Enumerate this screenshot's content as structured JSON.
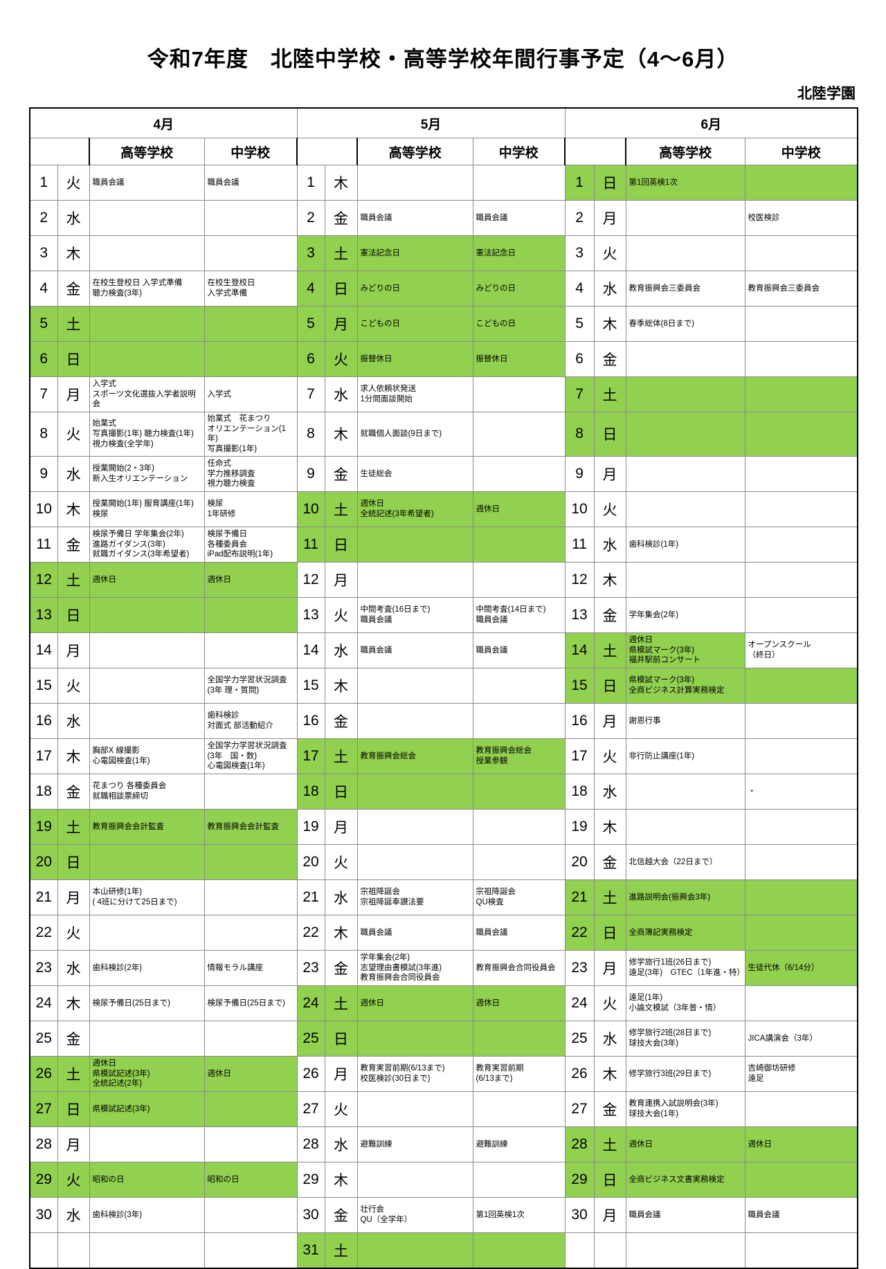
{
  "page": {
    "title": "令和7年度　北陸中学校・高等学校年間行事予定（4～6月）",
    "org": "北陸学園",
    "highlight_color": "#92d050"
  },
  "months": [
    {
      "name": "4月",
      "hs_header": "高等学校",
      "jhs_header": "中学校",
      "days": [
        {
          "d": "1",
          "w": "火",
          "hs": "職員会議",
          "jhs": "職員会議",
          "hl": "none"
        },
        {
          "d": "2",
          "w": "水",
          "hs": "",
          "jhs": "",
          "hl": "none"
        },
        {
          "d": "3",
          "w": "木",
          "hs": "",
          "jhs": "",
          "hl": "none"
        },
        {
          "d": "4",
          "w": "金",
          "hs": "在校生登校日 入学式準備\n聴力検査(3年)",
          "jhs": "在校生登校日\n入学式準備",
          "hl": "none"
        },
        {
          "d": "5",
          "w": "土",
          "hs": "",
          "jhs": "",
          "hl": "full"
        },
        {
          "d": "6",
          "w": "日",
          "hs": "",
          "jhs": "",
          "hl": "full"
        },
        {
          "d": "7",
          "w": "月",
          "hs": "入学式\nスポーツ文化選抜入学者説明会",
          "jhs": "入学式",
          "hl": "none"
        },
        {
          "d": "8",
          "w": "火",
          "hs": "始業式\n写真撮影(1年) 聴力検査(1年)\n視力検査(全学年)",
          "jhs": "始業式　花まつり\nオリエンテーション(1年)\n写真撮影(1年)",
          "hl": "none"
        },
        {
          "d": "9",
          "w": "水",
          "hs": "授業開始(2・3年)\n新入生オリエンテーション",
          "jhs": "任命式\n学力推移調査\n視力聴力検査",
          "hl": "none"
        },
        {
          "d": "10",
          "w": "木",
          "hs": "授業開始(1年) 服育講座(1年)\n検尿",
          "jhs": "検尿\n1年研修",
          "hl": "none"
        },
        {
          "d": "11",
          "w": "金",
          "hs": "検尿予備日 学年集会(2年)\n進路ガイダンス(3年)\n就職ガイダンス(3年希望者)",
          "jhs": "検尿予備日\n各種委員会\niPad配布説明(1年)",
          "hl": "none"
        },
        {
          "d": "12",
          "w": "土",
          "hs": "週休日",
          "jhs": "週休日",
          "hl": "full"
        },
        {
          "d": "13",
          "w": "日",
          "hs": "",
          "jhs": "",
          "hl": "full"
        },
        {
          "d": "14",
          "w": "月",
          "hs": "",
          "jhs": "",
          "hl": "none"
        },
        {
          "d": "15",
          "w": "火",
          "hs": "",
          "jhs": "全国学力学習状況調査(3年 理・質問)",
          "hl": "none"
        },
        {
          "d": "16",
          "w": "水",
          "hs": "",
          "jhs": "歯科検診\n対面式 部活動紹介",
          "hl": "none"
        },
        {
          "d": "17",
          "w": "木",
          "hs": "胸部X 線撮影\n心電図検査(1年)",
          "jhs": "全国学力学習状況調査\n(3年　国・数)\n心電図検査(1年)",
          "hl": "none"
        },
        {
          "d": "18",
          "w": "金",
          "hs": "花まつり 各種委員会\n就職相談票締切",
          "jhs": "",
          "hl": "none"
        },
        {
          "d": "19",
          "w": "土",
          "hs": "教育振興会会計監査",
          "jhs": "教育振興会会計監査",
          "hl": "full"
        },
        {
          "d": "20",
          "w": "日",
          "hs": "",
          "jhs": "",
          "hl": "full"
        },
        {
          "d": "21",
          "w": "月",
          "hs": "本山研修(1年)\n( 4班に分けて25日まで)",
          "jhs": "",
          "hl": "none"
        },
        {
          "d": "22",
          "w": "火",
          "hs": "",
          "jhs": "",
          "hl": "none"
        },
        {
          "d": "23",
          "w": "水",
          "hs": "歯科検診(2年)",
          "jhs": "情報モラル講座",
          "hl": "none"
        },
        {
          "d": "24",
          "w": "木",
          "hs": "検尿予備日(25日まで)",
          "jhs": "検尿予備日(25日まで)",
          "hl": "none"
        },
        {
          "d": "25",
          "w": "金",
          "hs": "",
          "jhs": "",
          "hl": "none"
        },
        {
          "d": "26",
          "w": "土",
          "hs": "週休日\n県模試記述(3年)\n全統記述(2年)",
          "jhs": "週休日",
          "hl": "full"
        },
        {
          "d": "27",
          "w": "日",
          "hs": "県模試記述(3年)",
          "jhs": "",
          "hl": "full"
        },
        {
          "d": "28",
          "w": "月",
          "hs": "",
          "jhs": "",
          "hl": "none"
        },
        {
          "d": "29",
          "w": "火",
          "hs": "昭和の日",
          "jhs": "昭和の日",
          "hl": "full"
        },
        {
          "d": "30",
          "w": "水",
          "hs": "歯科検診(3年)",
          "jhs": "",
          "hl": "none"
        },
        {
          "d": "",
          "w": "",
          "hs": "",
          "jhs": "",
          "hl": "none"
        }
      ]
    },
    {
      "name": "5月",
      "hs_header": "高等学校",
      "jhs_header": "中学校",
      "days": [
        {
          "d": "1",
          "w": "木",
          "hs": "",
          "jhs": "",
          "hl": "none"
        },
        {
          "d": "2",
          "w": "金",
          "hs": "職員会議",
          "jhs": "職員会議",
          "hl": "none"
        },
        {
          "d": "3",
          "w": "土",
          "hs": "憲法記念日",
          "jhs": "憲法記念日",
          "hl": "full"
        },
        {
          "d": "4",
          "w": "日",
          "hs": "みどりの日",
          "jhs": "みどりの日",
          "hl": "full"
        },
        {
          "d": "5",
          "w": "月",
          "hs": "こどもの日",
          "jhs": "こどもの日",
          "hl": "full"
        },
        {
          "d": "6",
          "w": "火",
          "hs": "振替休日",
          "jhs": "振替休日",
          "hl": "full"
        },
        {
          "d": "7",
          "w": "水",
          "hs": "求人依頼状発送\n1分間面談開始",
          "jhs": "",
          "hl": "none"
        },
        {
          "d": "8",
          "w": "木",
          "hs": "就職個人面談(9日まで)",
          "jhs": "",
          "hl": "none"
        },
        {
          "d": "9",
          "w": "金",
          "hs": "生徒総会",
          "jhs": "",
          "hl": "none"
        },
        {
          "d": "10",
          "w": "土",
          "hs": "週休日\n全統記述(3年希望者)",
          "jhs": "週休日",
          "hl": "full"
        },
        {
          "d": "11",
          "w": "日",
          "hs": "",
          "jhs": "",
          "hl": "full"
        },
        {
          "d": "12",
          "w": "月",
          "hs": "",
          "jhs": "",
          "hl": "none"
        },
        {
          "d": "13",
          "w": "火",
          "hs": "中間考査(16日まで)\n職員会議",
          "jhs": "中間考査(14日まで)\n職員会議",
          "hl": "none"
        },
        {
          "d": "14",
          "w": "水",
          "hs": "職員会議",
          "jhs": "職員会議",
          "hl": "none"
        },
        {
          "d": "15",
          "w": "木",
          "hs": "",
          "jhs": "",
          "hl": "none"
        },
        {
          "d": "16",
          "w": "金",
          "hs": "",
          "jhs": "",
          "hl": "none"
        },
        {
          "d": "17",
          "w": "土",
          "hs": "教育振興会総会",
          "jhs": "教育振興会総会\n授業参観",
          "hl": "full"
        },
        {
          "d": "18",
          "w": "日",
          "hs": "",
          "jhs": "",
          "hl": "full"
        },
        {
          "d": "19",
          "w": "月",
          "hs": "",
          "jhs": "",
          "hl": "none"
        },
        {
          "d": "20",
          "w": "火",
          "hs": "",
          "jhs": "",
          "hl": "none"
        },
        {
          "d": "21",
          "w": "水",
          "hs": "宗祖降誕会\n宗祖降誕奉讃法要",
          "jhs": "宗祖降誕会\nQU検査",
          "hl": "none"
        },
        {
          "d": "22",
          "w": "木",
          "hs": "職員会議",
          "jhs": "職員会議",
          "hl": "none"
        },
        {
          "d": "23",
          "w": "金",
          "hs": "学年集会(2年)\n志望理由書模試(3年進)\n教育振興会合同役員会",
          "jhs": "教育振興会合同役員会",
          "hl": "none"
        },
        {
          "d": "24",
          "w": "土",
          "hs": "週休日",
          "jhs": "週休日",
          "hl": "full"
        },
        {
          "d": "25",
          "w": "日",
          "hs": "",
          "jhs": "",
          "hl": "full"
        },
        {
          "d": "26",
          "w": "月",
          "hs": "教育実習前期(6/13まで)\n校医検診(30日まで)",
          "jhs": "教育実習前期\n(6/13まで)",
          "hl": "none"
        },
        {
          "d": "27",
          "w": "火",
          "hs": "",
          "jhs": "",
          "hl": "none"
        },
        {
          "d": "28",
          "w": "水",
          "hs": "避難訓練",
          "jhs": "避難訓練",
          "hl": "none"
        },
        {
          "d": "29",
          "w": "木",
          "hs": "",
          "jhs": "",
          "hl": "none"
        },
        {
          "d": "30",
          "w": "金",
          "hs": "壮行会\nQU（全学年）",
          "jhs": "第1回英検1次",
          "hl": "none"
        },
        {
          "d": "31",
          "w": "土",
          "hs": "",
          "jhs": "",
          "hl": "full"
        }
      ]
    },
    {
      "name": "6月",
      "hs_header": "高等学校",
      "jhs_header": "中学校",
      "days": [
        {
          "d": "1",
          "w": "日",
          "hs": "第1回英検1次",
          "jhs": "",
          "hl": "full"
        },
        {
          "d": "2",
          "w": "月",
          "hs": "",
          "jhs": "校医検診",
          "hl": "none"
        },
        {
          "d": "3",
          "w": "火",
          "hs": "",
          "jhs": "",
          "hl": "none"
        },
        {
          "d": "4",
          "w": "水",
          "hs": "教育振興会三委員会",
          "jhs": "教育振興会三委員会",
          "hl": "none"
        },
        {
          "d": "5",
          "w": "木",
          "hs": "春季総体(8日まで)",
          "jhs": "",
          "hl": "none"
        },
        {
          "d": "6",
          "w": "金",
          "hs": "",
          "jhs": "",
          "hl": "none"
        },
        {
          "d": "7",
          "w": "土",
          "hs": "",
          "jhs": "",
          "hl": "full"
        },
        {
          "d": "8",
          "w": "日",
          "hs": "",
          "jhs": "",
          "hl": "full"
        },
        {
          "d": "9",
          "w": "月",
          "hs": "",
          "jhs": "",
          "hl": "none"
        },
        {
          "d": "10",
          "w": "火",
          "hs": "",
          "jhs": "",
          "hl": "none"
        },
        {
          "d": "11",
          "w": "水",
          "hs": "歯科検診(1年)",
          "jhs": "",
          "hl": "none"
        },
        {
          "d": "12",
          "w": "木",
          "hs": "",
          "jhs": "",
          "hl": "none"
        },
        {
          "d": "13",
          "w": "金",
          "hs": "学年集会(2年)",
          "jhs": "",
          "hl": "none"
        },
        {
          "d": "14",
          "w": "土",
          "hs": "週休日\n県模試マーク(3年)\n福井駅前コンサート",
          "jhs": "オープンスクール\n（終日）",
          "hl": "hs"
        },
        {
          "d": "15",
          "w": "日",
          "hs": "県模試マーク(3年)\n全商ビジネス計算実務検定",
          "jhs": "",
          "hl": "full"
        },
        {
          "d": "16",
          "w": "月",
          "hs": "謝恩行事",
          "jhs": "",
          "hl": "none"
        },
        {
          "d": "17",
          "w": "火",
          "hs": "非行防止講座(1年)",
          "jhs": "",
          "hl": "none"
        },
        {
          "d": "18",
          "w": "水",
          "hs": "",
          "jhs": "・",
          "hl": "none"
        },
        {
          "d": "19",
          "w": "木",
          "hs": "",
          "jhs": "",
          "hl": "none"
        },
        {
          "d": "20",
          "w": "金",
          "hs": "北信越大会（22日まで）",
          "jhs": "",
          "hl": "none"
        },
        {
          "d": "21",
          "w": "土",
          "hs": "進路説明会(振興会3年)",
          "jhs": "",
          "hl": "full"
        },
        {
          "d": "22",
          "w": "日",
          "hs": "全商簿記実務検定",
          "jhs": "",
          "hl": "full"
        },
        {
          "d": "23",
          "w": "月",
          "hs": "修学旅行1班(26日まで)\n遠足(3年)　GTEC（1年進・特）",
          "jhs": "生徒代休（6/14分）",
          "hl": "jhs"
        },
        {
          "d": "24",
          "w": "火",
          "hs": "遠足(1年)\n小論文模試（3年普・情）",
          "jhs": "",
          "hl": "none"
        },
        {
          "d": "25",
          "w": "水",
          "hs": "修学旅行2班(28日まで)\n球技大会(3年)",
          "jhs": "JICA講演会（3年）",
          "hl": "none"
        },
        {
          "d": "26",
          "w": "木",
          "hs": "修学旅行3班(29日まで)",
          "jhs": "吉崎御坊研修\n遠足",
          "hl": "none"
        },
        {
          "d": "27",
          "w": "金",
          "hs": "教育連携入試説明会(3年)\n球技大会(1年)",
          "jhs": "",
          "hl": "none"
        },
        {
          "d": "28",
          "w": "土",
          "hs": "週休日",
          "jhs": "週休日",
          "hl": "full"
        },
        {
          "d": "29",
          "w": "日",
          "hs": "全商ビジネス文書実務検定",
          "jhs": "",
          "hl": "full"
        },
        {
          "d": "30",
          "w": "月",
          "hs": "職員会議",
          "jhs": "職員会議",
          "hl": "none"
        },
        {
          "d": "",
          "w": "",
          "hs": "",
          "jhs": "",
          "hl": "none"
        }
      ]
    }
  ]
}
